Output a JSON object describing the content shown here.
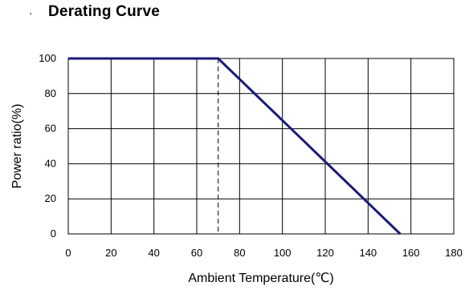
{
  "heading": {
    "bullet": "·",
    "title": "Derating Curve"
  },
  "chart_data": {
    "type": "line",
    "title": "Derating Curve",
    "xlabel": "Ambient Temperature(℃)",
    "ylabel": "Power ratio(%)",
    "xlim": [
      0,
      180
    ],
    "ylim": [
      0,
      100
    ],
    "x_ticks": [
      0,
      20,
      40,
      60,
      80,
      100,
      120,
      140,
      160,
      180
    ],
    "y_ticks": [
      0,
      20,
      40,
      60,
      80,
      100
    ],
    "grid": true,
    "series": [
      {
        "x": [
          0,
          70,
          155
        ],
        "y": [
          100,
          100,
          0
        ],
        "color": "#1a1a7a"
      }
    ],
    "annotations": [
      {
        "type": "vertical-dashed-line",
        "x": 70,
        "y_from": 0,
        "y_to": 100
      }
    ]
  }
}
